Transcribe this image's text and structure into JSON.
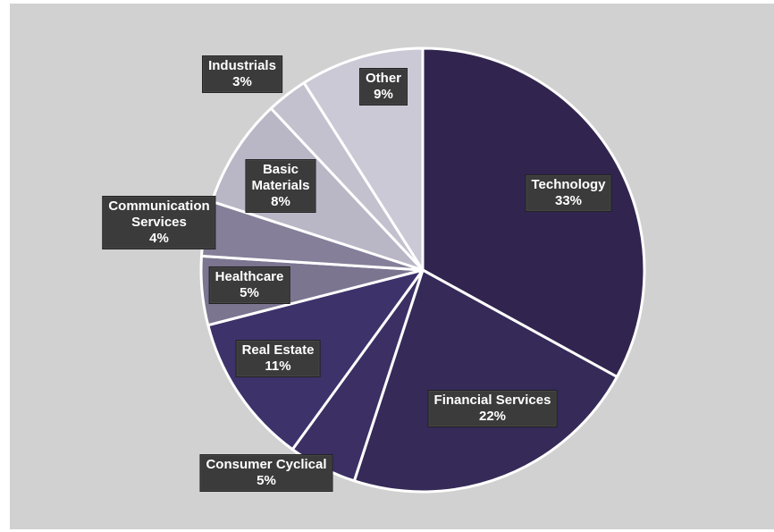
{
  "chart_data": {
    "type": "pie",
    "start": "12 o'clock",
    "direction": "clockwise",
    "slices": [
      {
        "label": "Technology",
        "value": 33,
        "value_label": "33%",
        "color": "#31254f"
      },
      {
        "label": "Financial Services",
        "value": 22,
        "value_label": "22%",
        "color": "#352a58"
      },
      {
        "label": "Consumer Cyclical",
        "value": 5,
        "value_label": "5%",
        "color": "#3b2f63"
      },
      {
        "label": "Real Estate",
        "value": 11,
        "value_label": "11%",
        "color": "#3e326b"
      },
      {
        "label": "Healthcare",
        "value": 5,
        "value_label": "5%",
        "color": "#7b7590"
      },
      {
        "label": "Communication Services",
        "value": 4,
        "value_label": "4%",
        "color": "#857f99"
      },
      {
        "label": "Basic Materials",
        "value": 8,
        "value_label": "8%",
        "color": "#b9b6c6"
      },
      {
        "label": "Industrials",
        "value": 3,
        "value_label": "3%",
        "color": "#c4c1cf"
      },
      {
        "label": "Other",
        "value": 9,
        "value_label": "9%",
        "color": "#cbc9d5"
      }
    ]
  }
}
